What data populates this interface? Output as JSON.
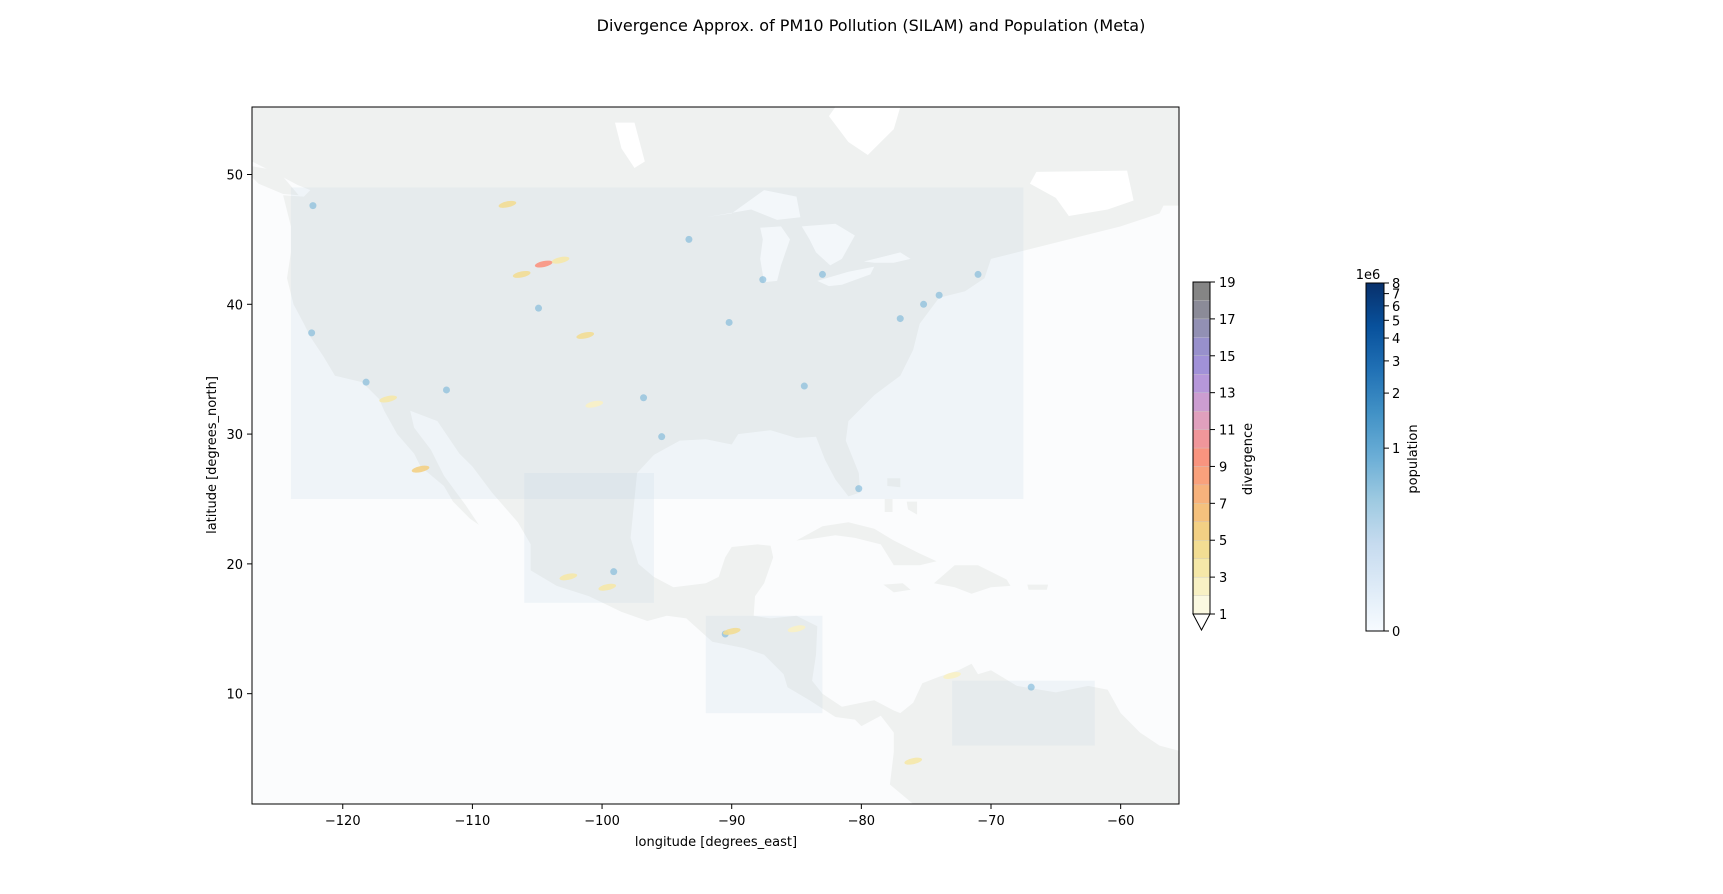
{
  "chart_data": {
    "type": "heatmap",
    "title": "Divergence Approx. of PM10 Pollution (SILAM) and Population (Meta)",
    "xlabel": "longitude [degrees_east]",
    "ylabel": "latitude [degrees_north]",
    "xlim": [
      -127,
      -55.5
    ],
    "ylim": [
      1.5,
      55.2
    ],
    "xticks": [
      -120,
      -110,
      -100,
      -90,
      -80,
      -70,
      -60
    ],
    "xtick_labels": [
      "−120",
      "−110",
      "−100",
      "−90",
      "−80",
      "−70",
      "−60"
    ],
    "yticks": [
      10,
      20,
      30,
      40,
      50
    ],
    "ytick_labels": [
      "10",
      "20",
      "30",
      "40",
      "50"
    ],
    "grid": false,
    "colors": {
      "land": "#eff1f0",
      "ocean": "#fbfcfd",
      "population_overlay": "#bfd2e6"
    },
    "divergence_colorbar": {
      "label": "divergence",
      "range": [
        1,
        19
      ],
      "ticks": [
        1,
        3,
        5,
        7,
        9,
        11,
        13,
        15,
        17,
        19
      ],
      "extend": "min",
      "levels": [
        {
          "from": 1,
          "to": 2,
          "color": "#fbf9e1"
        },
        {
          "from": 2,
          "to": 3,
          "color": "#f8f1c4"
        },
        {
          "from": 3,
          "to": 4,
          "color": "#f5e8a8"
        },
        {
          "from": 4,
          "to": 5,
          "color": "#f2dd93"
        },
        {
          "from": 5,
          "to": 6,
          "color": "#f3d084"
        },
        {
          "from": 6,
          "to": 7,
          "color": "#f5c17d"
        },
        {
          "from": 7,
          "to": 8,
          "color": "#f7b27c"
        },
        {
          "from": 8,
          "to": 9,
          "color": "#f9a17c"
        },
        {
          "from": 9,
          "to": 10,
          "color": "#f9947f"
        },
        {
          "from": 10,
          "to": 11,
          "color": "#f0969a"
        },
        {
          "from": 11,
          "to": 12,
          "color": "#e0a0bd"
        },
        {
          "from": 12,
          "to": 13,
          "color": "#cc9dd1"
        },
        {
          "from": 13,
          "to": 14,
          "color": "#b697da"
        },
        {
          "from": 14,
          "to": 15,
          "color": "#a191d8"
        },
        {
          "from": 15,
          "to": 16,
          "color": "#9890cc"
        },
        {
          "from": 16,
          "to": 17,
          "color": "#9290b4"
        },
        {
          "from": 17,
          "to": 18,
          "color": "#8b8b98"
        },
        {
          "from": 18,
          "to": 19,
          "color": "#858585"
        }
      ]
    },
    "population_colorbar": {
      "label": "population",
      "scale_note": "1e6",
      "range": [
        0,
        8
      ],
      "ticks": [
        0,
        1,
        2,
        3,
        4,
        5,
        6,
        7,
        8
      ],
      "tick_labels": [
        "0",
        "1",
        "2",
        "3",
        "4",
        "5",
        "6",
        "7",
        "8"
      ],
      "colormap": [
        "#f7fbff",
        "#deebf7",
        "#c6dbef",
        "#9ecae1",
        "#6baed6",
        "#4292c6",
        "#2171b5",
        "#08519c",
        "#08306b"
      ]
    },
    "divergence_hotspots": [
      {
        "lon": -104.5,
        "lat": 43.1,
        "value": 9
      },
      {
        "lon": -106.2,
        "lat": 42.3,
        "value": 4
      },
      {
        "lon": -103.2,
        "lat": 43.4,
        "value": 3
      },
      {
        "lon": -107.3,
        "lat": 47.7,
        "value": 4
      },
      {
        "lon": -101.3,
        "lat": 37.6,
        "value": 4
      },
      {
        "lon": -114.0,
        "lat": 27.3,
        "value": 5
      },
      {
        "lon": -116.5,
        "lat": 32.7,
        "value": 3
      },
      {
        "lon": -99.6,
        "lat": 18.2,
        "value": 3
      },
      {
        "lon": -102.6,
        "lat": 19.0,
        "value": 3
      },
      {
        "lon": -90.0,
        "lat": 14.8,
        "value": 4
      },
      {
        "lon": -76.0,
        "lat": 4.8,
        "value": 3
      },
      {
        "lon": -73.0,
        "lat": 11.4,
        "value": 2
      },
      {
        "lon": -85.0,
        "lat": 15.0,
        "value": 2
      },
      {
        "lon": -100.6,
        "lat": 32.3,
        "value": 2
      }
    ]
  }
}
